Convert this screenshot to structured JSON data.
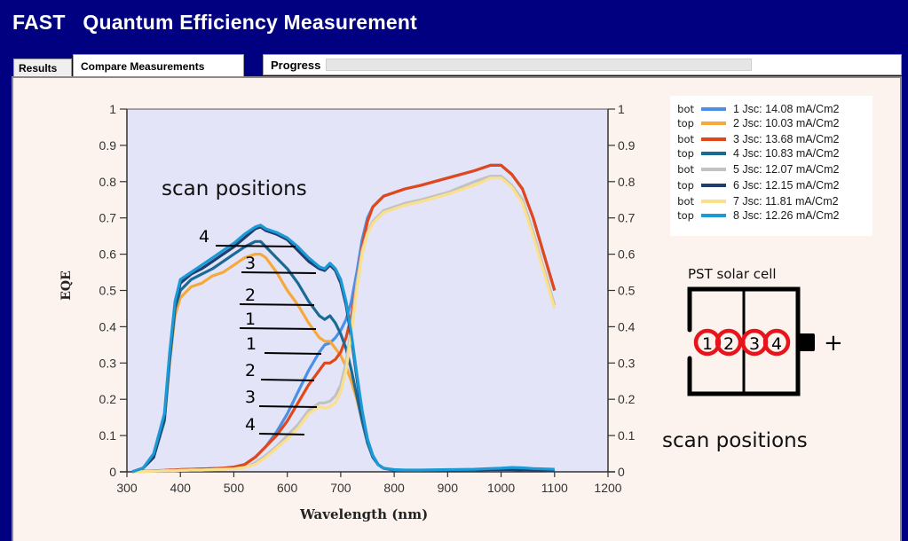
{
  "window": {
    "title": "FAST   Quantum Efficiency Measurement"
  },
  "tabs": [
    {
      "label": "Results",
      "active": false
    },
    {
      "label": "Compare Measurements",
      "active": true
    }
  ],
  "progress": {
    "label": "Progress",
    "value_percent": 0
  },
  "annotations": {
    "scan_positions_left": "scan positions",
    "scan_positions_right": "scan positions",
    "cell_title": "PST solar cell",
    "plus_sign": "+",
    "cell_positions": [
      "1",
      "2",
      "3",
      "4"
    ],
    "top_labels": [
      "4",
      "3",
      "2",
      "1"
    ],
    "bottom_labels": [
      "1",
      "2",
      "3",
      "4"
    ]
  },
  "colors": {
    "title_bar": "#000080",
    "panel_bg": "#fdf3ee",
    "plot_bg": "#e4e4f8",
    "marker_ring": "#e8141c"
  },
  "chart_data": {
    "type": "line",
    "title": "",
    "xlabel": "Wavelength (nm)",
    "ylabel": "EQE",
    "xlim": [
      300,
      1200
    ],
    "ylim": [
      0,
      1
    ],
    "xticks": [
      "300",
      "400",
      "500",
      "600",
      "700",
      "800",
      "900",
      "1000",
      "1100",
      "1200"
    ],
    "yticks": [
      "0",
      "0.1",
      "0.2",
      "0.3",
      "0.4",
      "0.5",
      "0.6",
      "0.7",
      "0.8",
      "0.9",
      "1"
    ],
    "grid": false,
    "legend_position": "right-top",
    "x": [
      310,
      330,
      350,
      370,
      380,
      390,
      400,
      420,
      440,
      460,
      480,
      500,
      520,
      540,
      550,
      560,
      580,
      600,
      620,
      640,
      660,
      670,
      680,
      690,
      700,
      710,
      720,
      730,
      740,
      750,
      760,
      770,
      780,
      800,
      820,
      850,
      900,
      950,
      980,
      1000,
      1020,
      1040,
      1060,
      1080,
      1100
    ],
    "series": [
      {
        "name": "1  Jsc: 14.08 mA/Cm2",
        "position": "bot",
        "color": "#4a8fe8",
        "values": [
          0.0,
          0.002,
          0.003,
          0.004,
          0.005,
          0.005,
          0.006,
          0.007,
          0.008,
          0.009,
          0.01,
          0.013,
          0.02,
          0.04,
          0.055,
          0.07,
          0.11,
          0.16,
          0.22,
          0.28,
          0.33,
          0.35,
          0.355,
          0.37,
          0.39,
          0.42,
          0.47,
          0.55,
          0.64,
          0.7,
          0.73,
          0.745,
          0.76,
          0.77,
          0.78,
          0.79,
          0.81,
          0.83,
          0.845,
          0.845,
          0.82,
          0.78,
          0.7,
          0.6,
          0.5
        ]
      },
      {
        "name": "2  Jsc: 10.03 mA/Cm2",
        "position": "top",
        "color": "#f6a83a",
        "values": [
          0.0,
          0.01,
          0.04,
          0.14,
          0.3,
          0.43,
          0.48,
          0.51,
          0.52,
          0.54,
          0.55,
          0.57,
          0.59,
          0.6,
          0.6,
          0.59,
          0.55,
          0.5,
          0.46,
          0.41,
          0.37,
          0.36,
          0.36,
          0.34,
          0.32,
          0.29,
          0.25,
          0.2,
          0.14,
          0.08,
          0.04,
          0.02,
          0.01,
          0.005,
          0.004,
          0.004,
          0.004,
          0.005,
          0.006,
          0.006,
          0.006,
          0.005,
          0.004,
          0.004,
          0.003
        ]
      },
      {
        "name": "3  Jsc: 13.68 mA/Cm2",
        "position": "bot",
        "color": "#e2471a",
        "values": [
          0.0,
          0.002,
          0.003,
          0.004,
          0.005,
          0.005,
          0.006,
          0.007,
          0.008,
          0.009,
          0.01,
          0.013,
          0.02,
          0.04,
          0.055,
          0.07,
          0.1,
          0.14,
          0.19,
          0.24,
          0.28,
          0.3,
          0.3,
          0.31,
          0.33,
          0.37,
          0.43,
          0.52,
          0.62,
          0.69,
          0.73,
          0.745,
          0.76,
          0.77,
          0.78,
          0.79,
          0.81,
          0.83,
          0.845,
          0.845,
          0.82,
          0.78,
          0.7,
          0.6,
          0.5
        ]
      },
      {
        "name": "4  Jsc: 10.83 mA/Cm2",
        "position": "top",
        "color": "#1a6a96",
        "values": [
          0.0,
          0.01,
          0.04,
          0.14,
          0.31,
          0.45,
          0.5,
          0.53,
          0.545,
          0.56,
          0.58,
          0.6,
          0.62,
          0.635,
          0.635,
          0.62,
          0.59,
          0.56,
          0.52,
          0.47,
          0.43,
          0.42,
          0.43,
          0.41,
          0.38,
          0.34,
          0.28,
          0.21,
          0.14,
          0.08,
          0.04,
          0.02,
          0.01,
          0.005,
          0.004,
          0.004,
          0.004,
          0.005,
          0.006,
          0.006,
          0.006,
          0.005,
          0.004,
          0.004,
          0.003
        ]
      },
      {
        "name": "5  Jsc: 12.07 mA/Cm2",
        "position": "bot",
        "color": "#c2c2c2",
        "values": [
          0.0,
          0.001,
          0.002,
          0.003,
          0.003,
          0.003,
          0.004,
          0.005,
          0.005,
          0.006,
          0.007,
          0.008,
          0.012,
          0.025,
          0.035,
          0.045,
          0.07,
          0.1,
          0.13,
          0.17,
          0.19,
          0.19,
          0.195,
          0.21,
          0.24,
          0.3,
          0.4,
          0.52,
          0.61,
          0.66,
          0.69,
          0.705,
          0.72,
          0.73,
          0.74,
          0.75,
          0.77,
          0.8,
          0.815,
          0.815,
          0.79,
          0.75,
          0.66,
          0.56,
          0.46
        ]
      },
      {
        "name": "6  Jsc: 12.15 mA/Cm2",
        "position": "top",
        "color": "#1d3e6e",
        "values": [
          0.0,
          0.01,
          0.04,
          0.15,
          0.32,
          0.46,
          0.52,
          0.545,
          0.56,
          0.58,
          0.6,
          0.62,
          0.645,
          0.67,
          0.675,
          0.665,
          0.655,
          0.64,
          0.61,
          0.58,
          0.56,
          0.555,
          0.57,
          0.555,
          0.52,
          0.46,
          0.37,
          0.26,
          0.16,
          0.09,
          0.045,
          0.02,
          0.01,
          0.005,
          0.004,
          0.004,
          0.004,
          0.005,
          0.006,
          0.006,
          0.006,
          0.005,
          0.004,
          0.004,
          0.003
        ]
      },
      {
        "name": "7  Jsc: 11.81 mA/Cm2",
        "position": "bot",
        "color": "#fbe08c",
        "values": [
          0.0,
          0.001,
          0.002,
          0.003,
          0.003,
          0.003,
          0.004,
          0.005,
          0.005,
          0.006,
          0.007,
          0.008,
          0.012,
          0.02,
          0.03,
          0.04,
          0.065,
          0.09,
          0.12,
          0.16,
          0.18,
          0.175,
          0.18,
          0.19,
          0.22,
          0.28,
          0.38,
          0.5,
          0.6,
          0.655,
          0.685,
          0.7,
          0.715,
          0.725,
          0.735,
          0.745,
          0.765,
          0.79,
          0.81,
          0.81,
          0.785,
          0.74,
          0.65,
          0.55,
          0.45
        ]
      },
      {
        "name": "8  Jsc: 12.26 mA/Cm2",
        "position": "top",
        "color": "#1a9ad6",
        "values": [
          0.0,
          0.01,
          0.05,
          0.16,
          0.33,
          0.47,
          0.53,
          0.55,
          0.57,
          0.59,
          0.61,
          0.63,
          0.655,
          0.675,
          0.68,
          0.67,
          0.66,
          0.645,
          0.62,
          0.59,
          0.565,
          0.56,
          0.575,
          0.56,
          0.53,
          0.47,
          0.38,
          0.27,
          0.17,
          0.09,
          0.045,
          0.02,
          0.01,
          0.006,
          0.005,
          0.005,
          0.006,
          0.007,
          0.009,
          0.01,
          0.012,
          0.011,
          0.009,
          0.008,
          0.007
        ]
      }
    ]
  }
}
